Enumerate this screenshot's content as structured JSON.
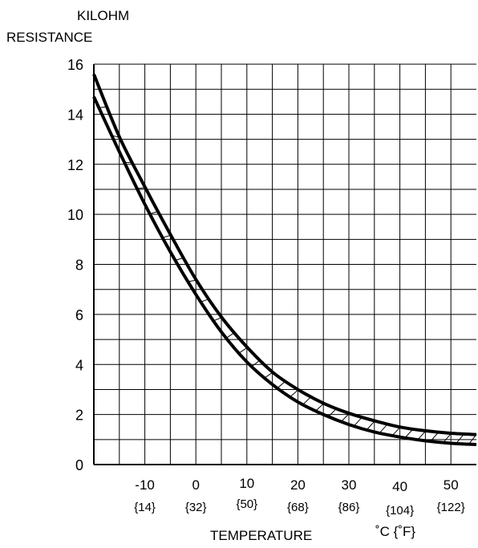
{
  "chart_data": {
    "type": "line",
    "title": "",
    "ylabel_line1": "KILOHM",
    "ylabel_line2": "RESISTANCE",
    "xlabel": "TEMPERATURE",
    "xunit": "˚C {˚F}",
    "xlim": [
      -20,
      55
    ],
    "ylim": [
      0,
      16
    ],
    "yticks": [
      "0",
      "2",
      "4",
      "6",
      "8",
      "10",
      "12",
      "14",
      "16"
    ],
    "xticks": [
      {
        "c": "-10",
        "f": "{14}"
      },
      {
        "c": "0",
        "f": "{32}"
      },
      {
        "c": "10",
        "f": "{50}"
      },
      {
        "c": "20",
        "f": "{68}"
      },
      {
        "c": "30",
        "f": "{86}"
      },
      {
        "c": "40",
        "f": "{104}"
      },
      {
        "c": "50",
        "f": "{122}"
      }
    ],
    "grid": true,
    "band_hatched": true,
    "series": [
      {
        "x": [
          -20,
          -15,
          -10,
          -5,
          0,
          5,
          10,
          15,
          20,
          25,
          30,
          35,
          40,
          45,
          50,
          55
        ],
        "values": [
          15.6,
          13.1,
          11.1,
          9.2,
          7.4,
          5.9,
          4.7,
          3.7,
          3.0,
          2.45,
          2.05,
          1.75,
          1.5,
          1.35,
          1.25,
          1.2
        ]
      },
      {
        "x": [
          -20,
          -15,
          -10,
          -5,
          0,
          5,
          10,
          15,
          20,
          25,
          30,
          35,
          40,
          45,
          50,
          55
        ],
        "values": [
          14.7,
          12.5,
          10.4,
          8.5,
          6.8,
          5.3,
          4.1,
          3.2,
          2.5,
          2.0,
          1.6,
          1.3,
          1.1,
          0.95,
          0.85,
          0.8
        ]
      }
    ]
  }
}
